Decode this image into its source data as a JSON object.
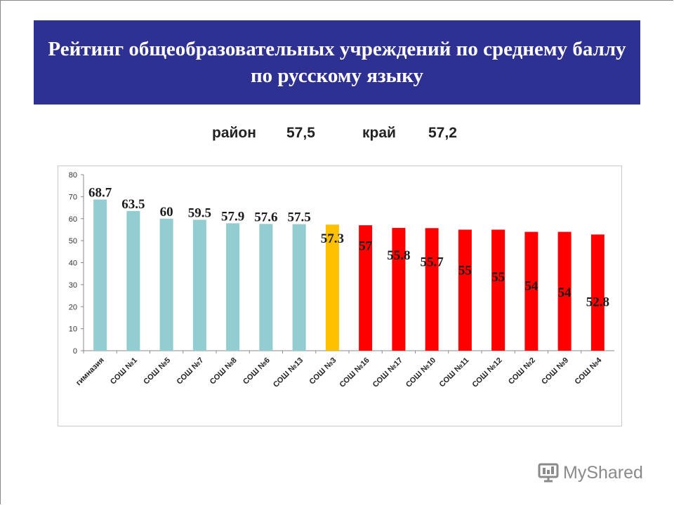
{
  "slide": {
    "title": "Рейтинг общеобразовательных учреждений по среднему баллу по русскому языку"
  },
  "summary": {
    "district_label": "район",
    "district_value": "57,5",
    "region_label": "край",
    "region_value": "57,2"
  },
  "watermark": {
    "text": "MyShared"
  },
  "colors": {
    "title_band": "#2e3192",
    "bar_blue": "#93cdd1",
    "bar_yellow": "#ffc000",
    "bar_red": "#ff0000"
  },
  "chart_data": {
    "type": "bar",
    "title": "",
    "xlabel": "",
    "ylabel": "",
    "ylim": [
      0,
      80
    ],
    "yticks": [
      0,
      10,
      20,
      30,
      40,
      50,
      60,
      70,
      80
    ],
    "grid": false,
    "categories": [
      "гимназия",
      "СОШ №1",
      "СОШ №5",
      "СОШ №7",
      "СОШ №8",
      "СОШ №6",
      "СОШ №13",
      "СОШ №3",
      "СОШ №16",
      "СОШ №17",
      "СОШ №10",
      "СОШ №11",
      "СОШ №12",
      "СОШ №2",
      "СОШ №9",
      "СОШ №4"
    ],
    "values": [
      68.7,
      63.5,
      60,
      59.5,
      57.9,
      57.6,
      57.5,
      57.3,
      57,
      55.8,
      55.7,
      55,
      55,
      54,
      54,
      52.8
    ],
    "data_labels": [
      "68.7",
      "63.5",
      "60",
      "59.5",
      "57.9",
      "57.6",
      "57.5",
      "57.3",
      "57",
      "55.8",
      "55.7",
      "55",
      "55",
      "54",
      "54",
      "52.8"
    ],
    "bar_colors": [
      "#93cdd1",
      "#93cdd1",
      "#93cdd1",
      "#93cdd1",
      "#93cdd1",
      "#93cdd1",
      "#93cdd1",
      "#ffc000",
      "#ff0000",
      "#ff0000",
      "#ff0000",
      "#ff0000",
      "#ff0000",
      "#ff0000",
      "#ff0000",
      "#ff0000"
    ]
  }
}
